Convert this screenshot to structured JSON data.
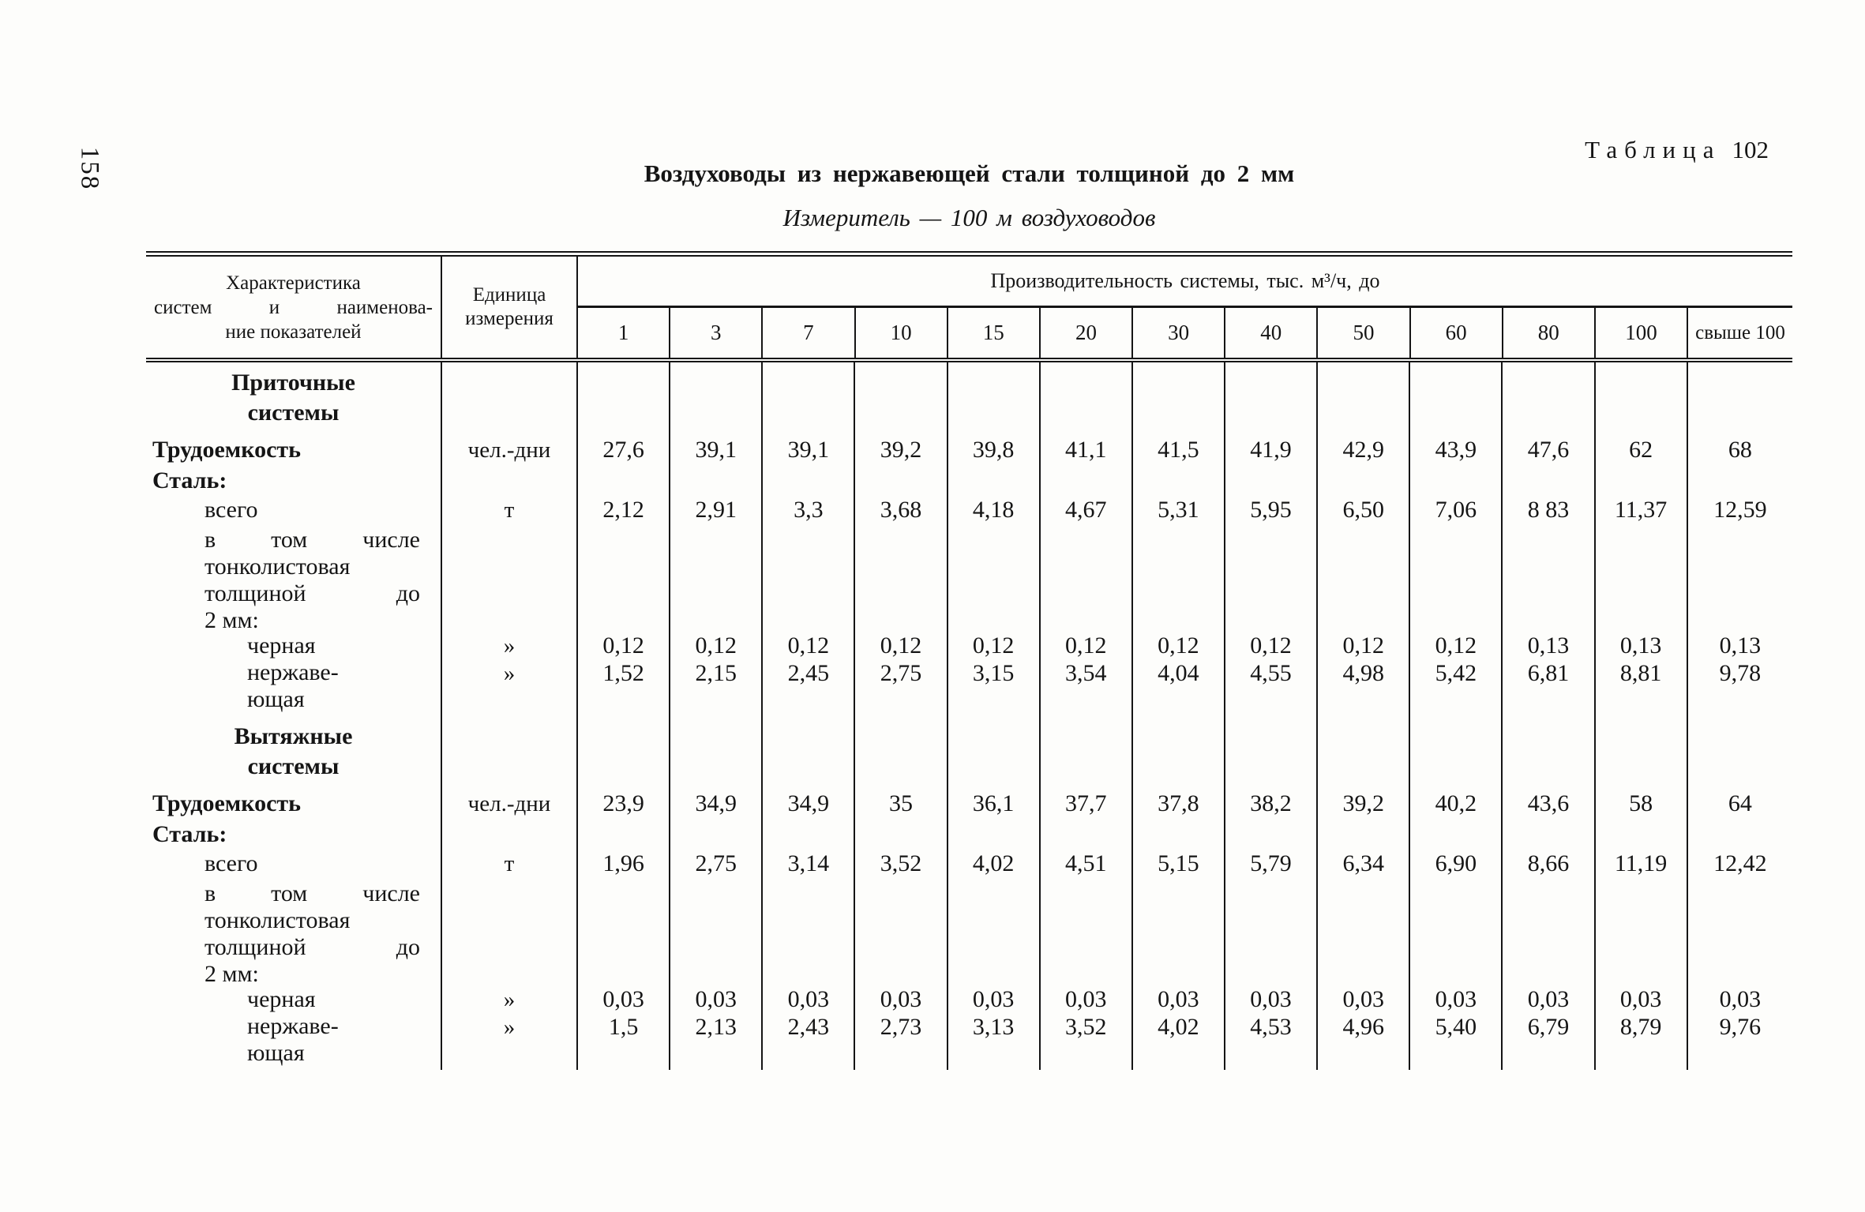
{
  "page": {
    "number": "158"
  },
  "caption": {
    "word": "Таблица",
    "number": "102"
  },
  "title": "Воздуховоды из нержавеющей стали толщиной до 2 мм",
  "subtitle": "Измеритель — 100 м воздуховодов",
  "header": {
    "col1_lines": [
      "Характеристика",
      "систем и наименова-",
      "ние показателей"
    ],
    "col2_lines": [
      "Единица",
      "измерения"
    ],
    "span": "Производительность системы, тыс. м³/ч, до",
    "columns": [
      "1",
      "3",
      "7",
      "10",
      "15",
      "20",
      "30",
      "40",
      "50",
      "60",
      "80",
      "100",
      "свыше 100"
    ]
  },
  "sections": [
    {
      "heading": [
        "Приточные",
        "системы"
      ],
      "rows": [
        {
          "label": "Трудоемкость",
          "unit": "чел.-дни",
          "values": [
            "27,6",
            "39,1",
            "39,1",
            "39,2",
            "39,8",
            "41,1",
            "41,5",
            "41,9",
            "42,9",
            "43,9",
            "47,6",
            "62",
            "68"
          ]
        },
        {
          "label": "Сталь:"
        },
        {
          "label": "всего",
          "unit": "т",
          "values": [
            "2,12",
            "2,91",
            "3,3",
            "3,68",
            "4,18",
            "4,67",
            "5,31",
            "5,95",
            "6,50",
            "7,06",
            "8 83",
            "11,37",
            "12,59"
          ]
        },
        {
          "label_lines": [
            "в том числе",
            "тонколистовая",
            "толщиной до",
            "2 мм:"
          ]
        },
        {
          "label": "черная",
          "unit": "»",
          "values": [
            "0,12",
            "0,12",
            "0,12",
            "0,12",
            "0,12",
            "0,12",
            "0,12",
            "0,12",
            "0,12",
            "0,12",
            "0,13",
            "0,13",
            "0,13"
          ]
        },
        {
          "label_lines": [
            "нержаве-",
            "ющая"
          ],
          "unit": "»",
          "values": [
            "1,52",
            "2,15",
            "2,45",
            "2,75",
            "3,15",
            "3,54",
            "4,04",
            "4,55",
            "4,98",
            "5,42",
            "6,81",
            "8,81",
            "9,78"
          ]
        }
      ]
    },
    {
      "heading": [
        "Вытяжные",
        "системы"
      ],
      "rows": [
        {
          "label": "Трудоемкость",
          "unit": "чел.-дни",
          "values": [
            "23,9",
            "34,9",
            "34,9",
            "35",
            "36,1",
            "37,7",
            "37,8",
            "38,2",
            "39,2",
            "40,2",
            "43,6",
            "58",
            "64"
          ]
        },
        {
          "label": "Сталь:"
        },
        {
          "label": "всего",
          "unit": "т",
          "values": [
            "1,96",
            "2,75",
            "3,14",
            "3,52",
            "4,02",
            "4,51",
            "5,15",
            "5,79",
            "6,34",
            "6,90",
            "8,66",
            "11,19",
            "12,42"
          ]
        },
        {
          "label_lines": [
            "в том числе",
            "тонколистовая",
            "толщиной до",
            "2 мм:"
          ]
        },
        {
          "label": "черная",
          "unit": "»",
          "values": [
            "0,03",
            "0,03",
            "0,03",
            "0,03",
            "0,03",
            "0,03",
            "0,03",
            "0,03",
            "0,03",
            "0,03",
            "0,03",
            "0,03",
            "0,03"
          ]
        },
        {
          "label_lines": [
            "нержаве-",
            "ющая"
          ],
          "unit": "»",
          "values": [
            "1,5",
            "2,13",
            "2,43",
            "2,73",
            "3,13",
            "3,52",
            "4,02",
            "4,53",
            "4,96",
            "5,40",
            "6,79",
            "8,79",
            "9,76"
          ]
        }
      ]
    }
  ]
}
